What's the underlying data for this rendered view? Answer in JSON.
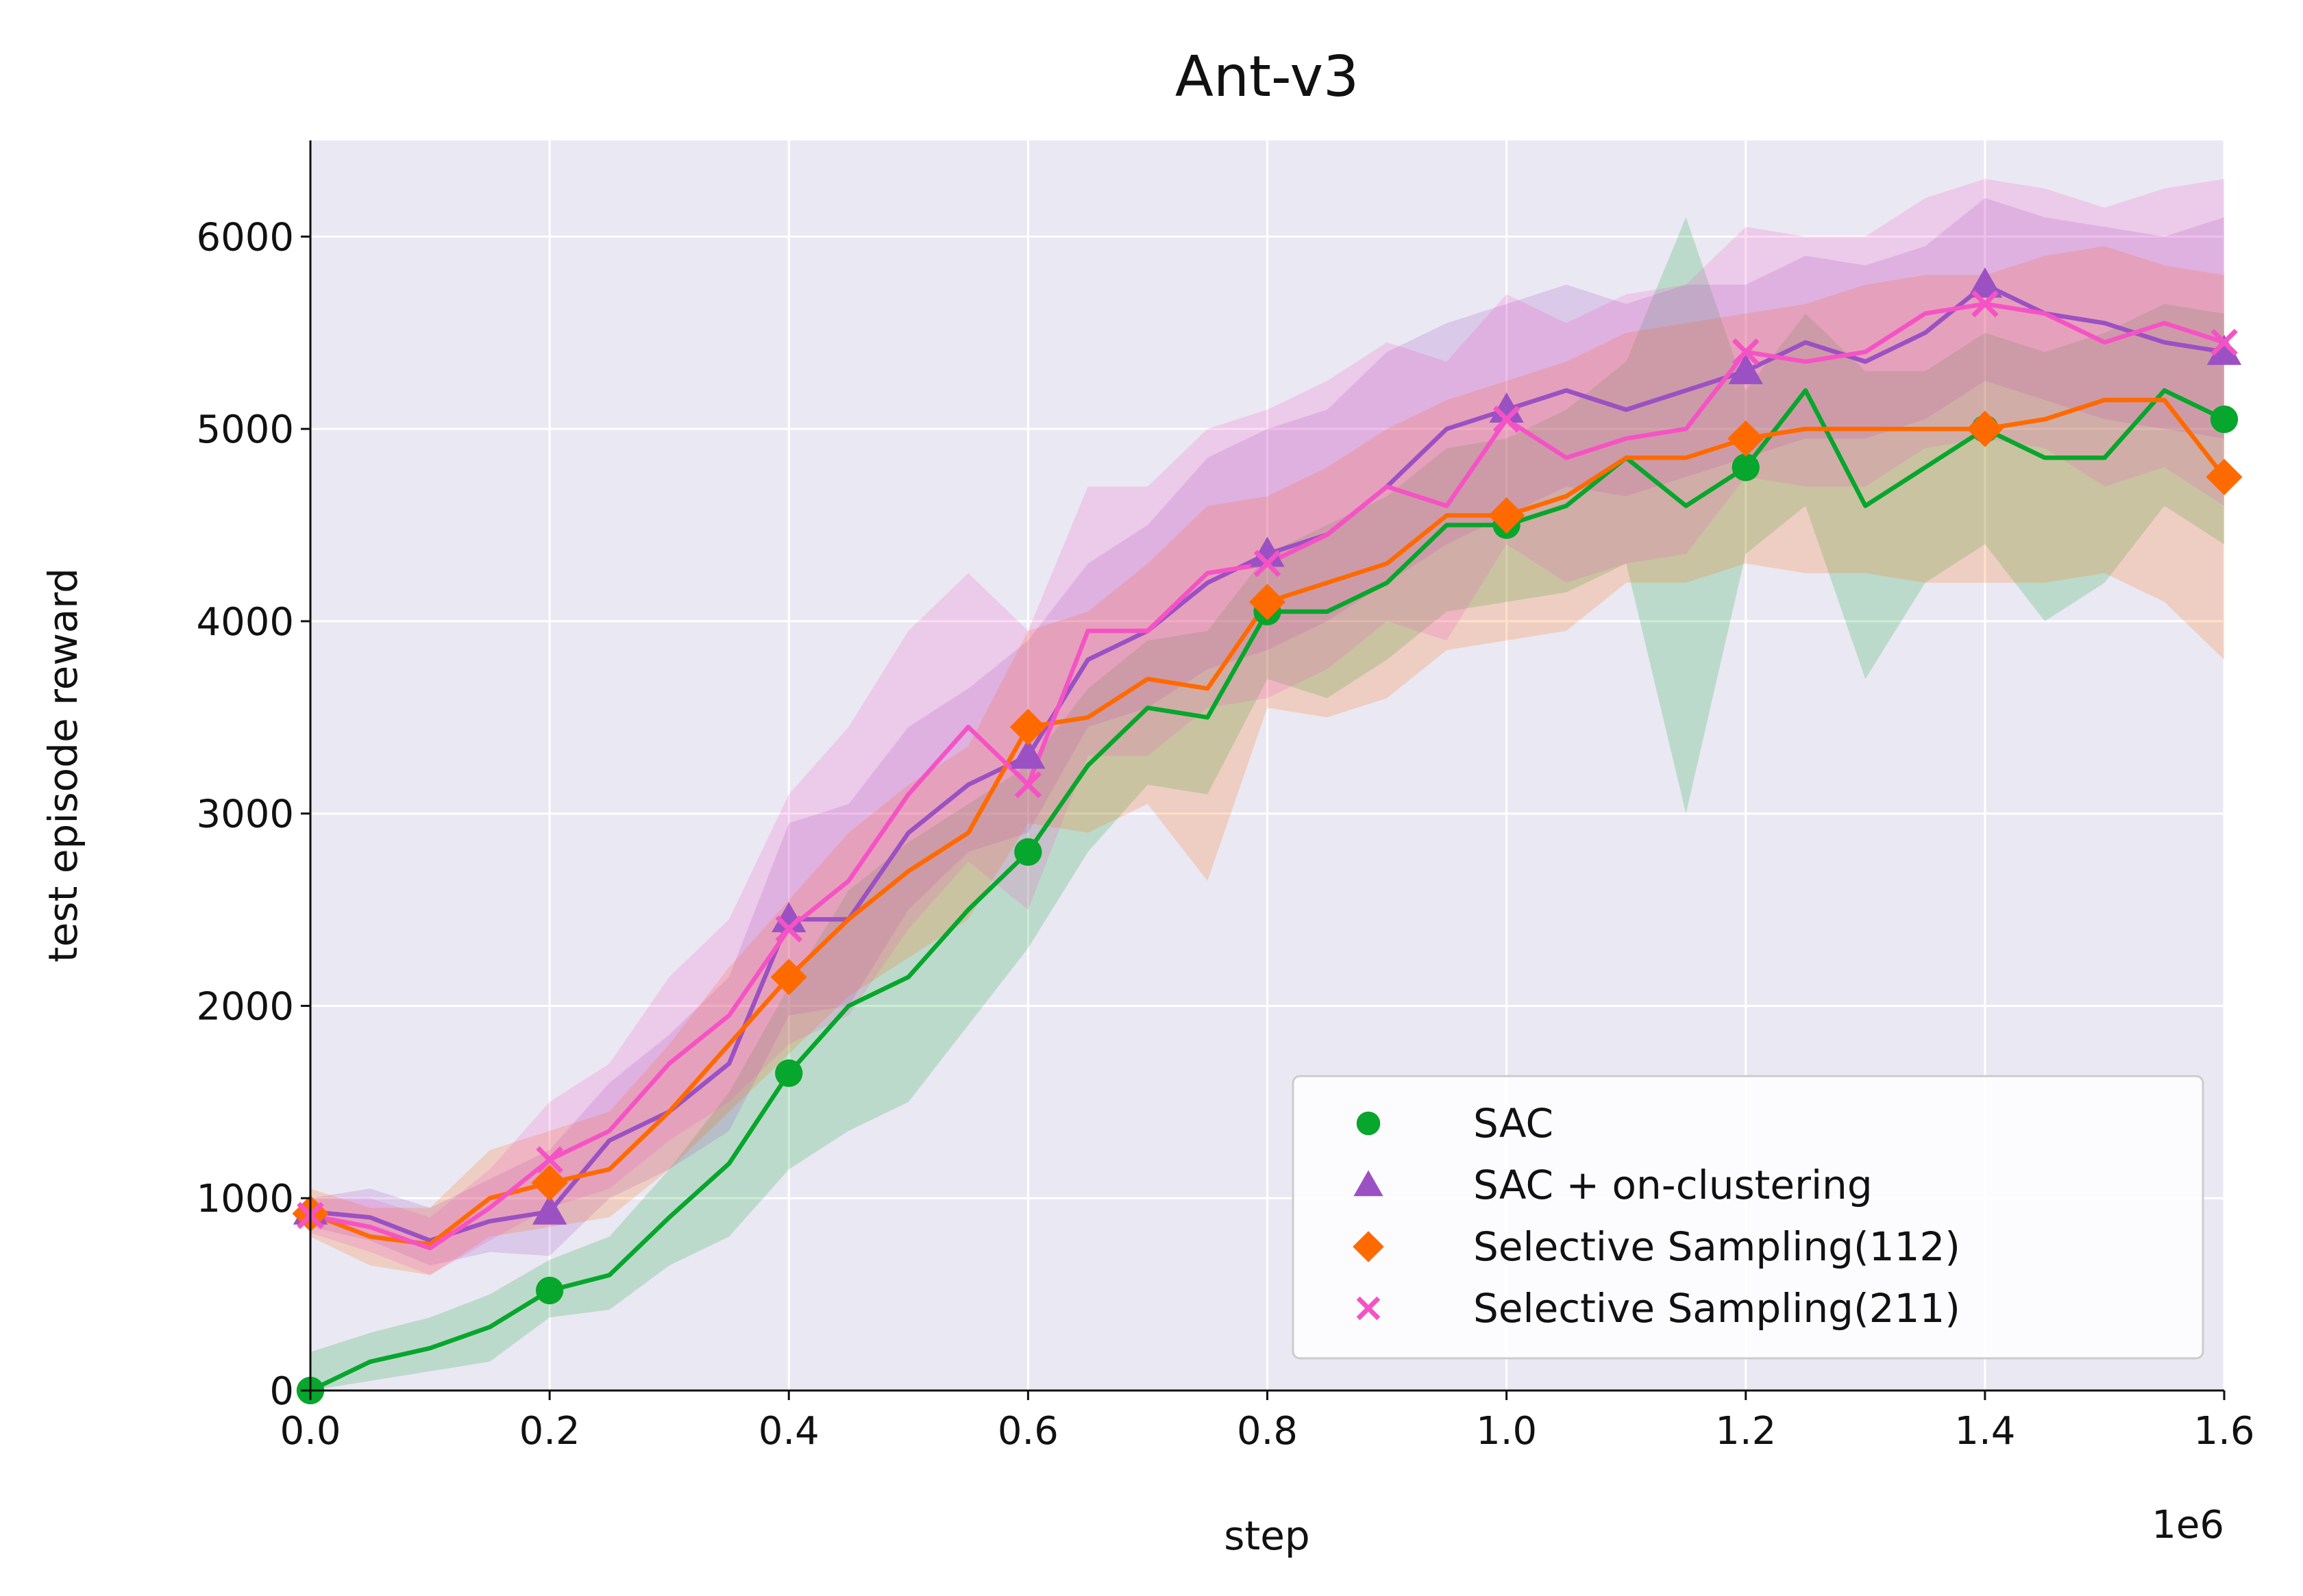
{
  "chart_data": {
    "type": "line",
    "title": "Ant-v3",
    "xlabel": "step",
    "ylabel": "test episode reward",
    "x_offset_label": "1e6",
    "xlim": [
      0,
      1.6
    ],
    "ylim": [
      0,
      6500
    ],
    "x_ticks": [
      "0.0",
      "0.2",
      "0.4",
      "0.6",
      "0.8",
      "1.0",
      "1.2",
      "1.4",
      "1.6"
    ],
    "y_ticks": [
      "0",
      "1000",
      "2000",
      "3000",
      "4000",
      "5000",
      "6000"
    ],
    "grid": true,
    "legend_position": "lower-right",
    "x": [
      0.0,
      0.05,
      0.1,
      0.15,
      0.2,
      0.25,
      0.3,
      0.35,
      0.4,
      0.45,
      0.5,
      0.55,
      0.6,
      0.65,
      0.7,
      0.75,
      0.8,
      0.85,
      0.9,
      0.95,
      1.0,
      1.05,
      1.1,
      1.15,
      1.2,
      1.25,
      1.3,
      1.35,
      1.4,
      1.45,
      1.5,
      1.55,
      1.6
    ],
    "series": [
      {
        "name": "SAC",
        "color": "#07a62c",
        "marker": "circle",
        "values": [
          0,
          150,
          220,
          330,
          520,
          600,
          900,
          1180,
          1650,
          2000,
          2150,
          2500,
          2800,
          3250,
          3550,
          3500,
          4050,
          4050,
          4200,
          4500,
          4500,
          4600,
          4850,
          4600,
          4800,
          5200,
          4600,
          4800,
          5000,
          4850,
          4850,
          5200,
          5050
        ],
        "band": [
          [
            0,
            200
          ],
          [
            50,
            300
          ],
          [
            100,
            380
          ],
          [
            150,
            500
          ],
          [
            380,
            680
          ],
          [
            420,
            800
          ],
          [
            650,
            1150
          ],
          [
            800,
            1550
          ],
          [
            1150,
            2100
          ],
          [
            1350,
            2600
          ],
          [
            1500,
            2850
          ],
          [
            1900,
            3050
          ],
          [
            2300,
            3250
          ],
          [
            2800,
            3650
          ],
          [
            3150,
            3900
          ],
          [
            3100,
            3950
          ],
          [
            3700,
            4350
          ],
          [
            3600,
            4500
          ],
          [
            3800,
            4650
          ],
          [
            4050,
            4900
          ],
          [
            4100,
            4950
          ],
          [
            4150,
            5100
          ],
          [
            4300,
            5350
          ],
          [
            3000,
            6100
          ],
          [
            4350,
            5200
          ],
          [
            4600,
            5600
          ],
          [
            3700,
            5300
          ],
          [
            4200,
            5300
          ],
          [
            4400,
            5500
          ],
          [
            4000,
            5400
          ],
          [
            4200,
            5500
          ],
          [
            4600,
            5650
          ],
          [
            4400,
            5600
          ]
        ]
      },
      {
        "name": "SAC + on-clustering",
        "color": "#9b51c3",
        "marker": "triangle",
        "values": [
          930,
          900,
          780,
          880,
          930,
          1300,
          1450,
          1700,
          2450,
          2450,
          2900,
          3150,
          3300,
          3800,
          3950,
          4200,
          4350,
          4450,
          4700,
          5000,
          5100,
          5200,
          5100,
          5200,
          5300,
          5450,
          5350,
          5500,
          5750,
          5600,
          5550,
          5450,
          5400
        ],
        "band": [
          [
            850,
            1000
          ],
          [
            780,
            1050
          ],
          [
            650,
            950
          ],
          [
            720,
            1100
          ],
          [
            700,
            1250
          ],
          [
            1000,
            1600
          ],
          [
            1150,
            1850
          ],
          [
            1350,
            2150
          ],
          [
            1950,
            2950
          ],
          [
            2000,
            3050
          ],
          [
            2500,
            3450
          ],
          [
            2800,
            3650
          ],
          [
            2900,
            3900
          ],
          [
            3450,
            4300
          ],
          [
            3550,
            4500
          ],
          [
            3750,
            4850
          ],
          [
            3850,
            5000
          ],
          [
            4000,
            5100
          ],
          [
            4200,
            5400
          ],
          [
            4400,
            5550
          ],
          [
            4550,
            5650
          ],
          [
            4700,
            5750
          ],
          [
            4650,
            5650
          ],
          [
            4750,
            5750
          ],
          [
            4850,
            5750
          ],
          [
            4950,
            5900
          ],
          [
            4950,
            5850
          ],
          [
            5050,
            5950
          ],
          [
            5250,
            6200
          ],
          [
            5150,
            6100
          ],
          [
            5050,
            6050
          ],
          [
            5000,
            6000
          ],
          [
            4950,
            6100
          ]
        ]
      },
      {
        "name": "Selective Sampling(112)",
        "color": "#ff6a00",
        "marker": "diamond",
        "values": [
          920,
          800,
          760,
          1000,
          1080,
          1150,
          1450,
          1800,
          2150,
          2450,
          2700,
          2900,
          3450,
          3500,
          3700,
          3650,
          4100,
          4200,
          4300,
          4550,
          4550,
          4650,
          4850,
          4850,
          4950,
          5000,
          5000,
          5000,
          5000,
          5050,
          5150,
          5150,
          4750
        ],
        "band": [
          [
            800,
            1050
          ],
          [
            650,
            950
          ],
          [
            600,
            950
          ],
          [
            800,
            1250
          ],
          [
            850,
            1350
          ],
          [
            900,
            1450
          ],
          [
            1150,
            1800
          ],
          [
            1450,
            2200
          ],
          [
            1750,
            2550
          ],
          [
            2050,
            2900
          ],
          [
            2250,
            3150
          ],
          [
            2450,
            3350
          ],
          [
            2950,
            3950
          ],
          [
            2900,
            4050
          ],
          [
            3050,
            4300
          ],
          [
            2650,
            4600
          ],
          [
            3550,
            4650
          ],
          [
            3500,
            4800
          ],
          [
            3600,
            5000
          ],
          [
            3850,
            5150
          ],
          [
            3900,
            5250
          ],
          [
            3950,
            5350
          ],
          [
            4200,
            5500
          ],
          [
            4200,
            5550
          ],
          [
            4300,
            5600
          ],
          [
            4250,
            5650
          ],
          [
            4250,
            5750
          ],
          [
            4200,
            5800
          ],
          [
            4200,
            5800
          ],
          [
            4200,
            5900
          ],
          [
            4250,
            5950
          ],
          [
            4100,
            5850
          ],
          [
            3800,
            5800
          ]
        ]
      },
      {
        "name": "Selective Sampling(211)",
        "color": "#f553c5",
        "marker": "x",
        "values": [
          910,
          850,
          740,
          950,
          1200,
          1350,
          1700,
          1950,
          2400,
          2650,
          3100,
          3450,
          3150,
          3950,
          3950,
          4250,
          4300,
          4450,
          4700,
          4600,
          5050,
          4850,
          4950,
          5000,
          5400,
          5350,
          5400,
          5600,
          5650,
          5600,
          5450,
          5550,
          5450
        ],
        "band": [
          [
            820,
            1000
          ],
          [
            720,
            1000
          ],
          [
            600,
            900
          ],
          [
            780,
            1150
          ],
          [
            950,
            1500
          ],
          [
            1050,
            1700
          ],
          [
            1300,
            2150
          ],
          [
            1500,
            2450
          ],
          [
            1800,
            3100
          ],
          [
            1950,
            3450
          ],
          [
            2400,
            3950
          ],
          [
            2750,
            4250
          ],
          [
            2500,
            3950
          ],
          [
            3300,
            4700
          ],
          [
            3300,
            4700
          ],
          [
            3550,
            5000
          ],
          [
            3600,
            5100
          ],
          [
            3750,
            5250
          ],
          [
            4000,
            5450
          ],
          [
            3900,
            5350
          ],
          [
            4400,
            5700
          ],
          [
            4200,
            5550
          ],
          [
            4300,
            5700
          ],
          [
            4350,
            5750
          ],
          [
            4750,
            6050
          ],
          [
            4700,
            6000
          ],
          [
            4700,
            6000
          ],
          [
            4900,
            6200
          ],
          [
            4950,
            6300
          ],
          [
            4900,
            6250
          ],
          [
            4700,
            6150
          ],
          [
            4800,
            6250
          ],
          [
            4600,
            6300
          ]
        ]
      }
    ]
  }
}
